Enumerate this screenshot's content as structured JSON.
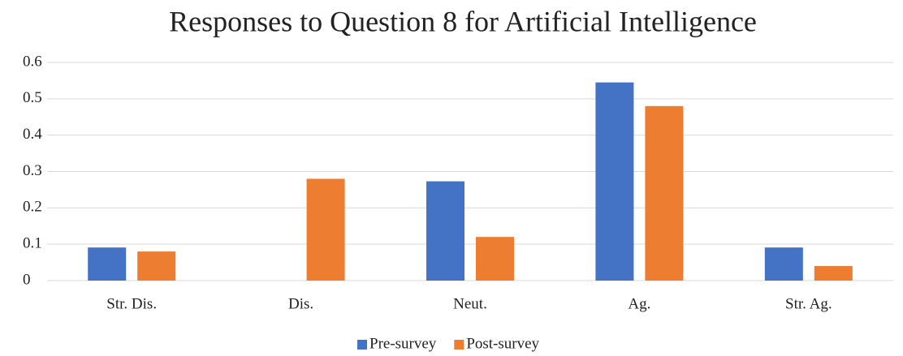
{
  "chart_data": {
    "type": "bar",
    "title": "Responses to Question 8 for Artificial Intelligence",
    "categories": [
      "Str. Dis.",
      "Dis.",
      "Neut.",
      "Ag.",
      "Str. Ag."
    ],
    "series": [
      {
        "name": "Pre-survey",
        "color": "#4472c4",
        "values": [
          0.091,
          0,
          0.273,
          0.545,
          0.091
        ]
      },
      {
        "name": "Post-survey",
        "color": "#ed7d31",
        "values": [
          0.08,
          0.28,
          0.12,
          0.48,
          0.04
        ]
      }
    ],
    "ylim": [
      0,
      0.6
    ],
    "yticks": [
      0,
      0.1,
      0.2,
      0.3,
      0.4,
      0.5,
      0.6
    ],
    "grid": true,
    "legend": "bottom"
  }
}
